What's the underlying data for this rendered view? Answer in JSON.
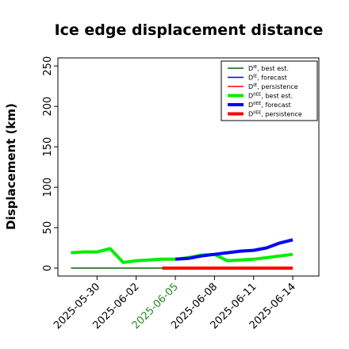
{
  "chart_data": {
    "type": "line",
    "title": "Ice edge displacement distance",
    "ylabel": "Displacement (km)",
    "xlabel": "",
    "ylim": [
      0,
      260
    ],
    "yticks": [
      0,
      50,
      100,
      150,
      200,
      250
    ],
    "xlim": [
      "2025-05-27",
      "2025-06-16"
    ],
    "x_tick_labels": [
      "2025-05-30",
      "2025-06-02",
      "2025-06-05",
      "2025-06-08",
      "2025-06-11",
      "2025-06-14"
    ],
    "x_tick_colors": [
      "#000000",
      "#000000",
      "#228b22",
      "#000000",
      "#000000",
      "#000000"
    ],
    "grid": false,
    "legend_position": "top-right",
    "series": [
      {
        "name": "D^IE, best est.",
        "color": "#006400",
        "width": "thin",
        "x": [
          "2025-05-28",
          "2025-06-05"
        ],
        "y": [
          0,
          0
        ]
      },
      {
        "name": "D^IE, forecast",
        "color": "#0000ff",
        "width": "thin",
        "x": [],
        "y": []
      },
      {
        "name": "D^IE, persistence",
        "color": "#ff0000",
        "width": "thin",
        "x": [],
        "y": []
      },
      {
        "name": "D^IIEE, best est.",
        "color": "#00ee00",
        "width": "thick",
        "x": [
          "2025-05-28",
          "2025-05-29",
          "2025-05-30",
          "2025-05-31",
          "2025-06-01",
          "2025-06-02",
          "2025-06-03",
          "2025-06-04",
          "2025-06-05",
          "2025-06-06",
          "2025-06-07",
          "2025-06-08",
          "2025-06-09",
          "2025-06-10",
          "2025-06-11",
          "2025-06-12",
          "2025-06-13",
          "2025-06-14"
        ],
        "y": [
          19,
          20,
          20,
          24,
          7,
          9,
          10,
          11,
          11,
          13,
          16,
          17,
          9,
          10,
          11,
          13,
          15,
          17
        ]
      },
      {
        "name": "D^IIEE, forecast",
        "color": "#0000ff",
        "width": "thick",
        "x": [
          "2025-06-05",
          "2025-06-06",
          "2025-06-07",
          "2025-06-08",
          "2025-06-09",
          "2025-06-10",
          "2025-06-11",
          "2025-06-12",
          "2025-06-13",
          "2025-06-14"
        ],
        "y": [
          11,
          12,
          15,
          17,
          19,
          21,
          22,
          25,
          31,
          35
        ]
      },
      {
        "name": "D^IIEE, persistence",
        "color": "#ff0000",
        "width": "thick",
        "x": [
          "2025-06-04",
          "2025-06-05",
          "2025-06-06",
          "2025-06-07",
          "2025-06-08",
          "2025-06-09",
          "2025-06-10",
          "2025-06-11",
          "2025-06-12",
          "2025-06-13",
          "2025-06-14"
        ],
        "y": [
          0,
          0,
          0,
          0,
          0,
          0,
          0,
          0,
          0,
          0,
          0
        ]
      }
    ],
    "legend_entries": [
      {
        "base": "D",
        "sup": "IE",
        "suffix": ", best est."
      },
      {
        "base": "D",
        "sup": "IE",
        "suffix": ", forecast"
      },
      {
        "base": "D",
        "sup": "IE",
        "suffix": ", persistence"
      },
      {
        "base": "D",
        "sup": "IIEE",
        "suffix": ", best est."
      },
      {
        "base": "D",
        "sup": "IIEE",
        "suffix": ", forecast"
      },
      {
        "base": "D",
        "sup": "IIEE",
        "suffix": ", persistence"
      }
    ]
  }
}
